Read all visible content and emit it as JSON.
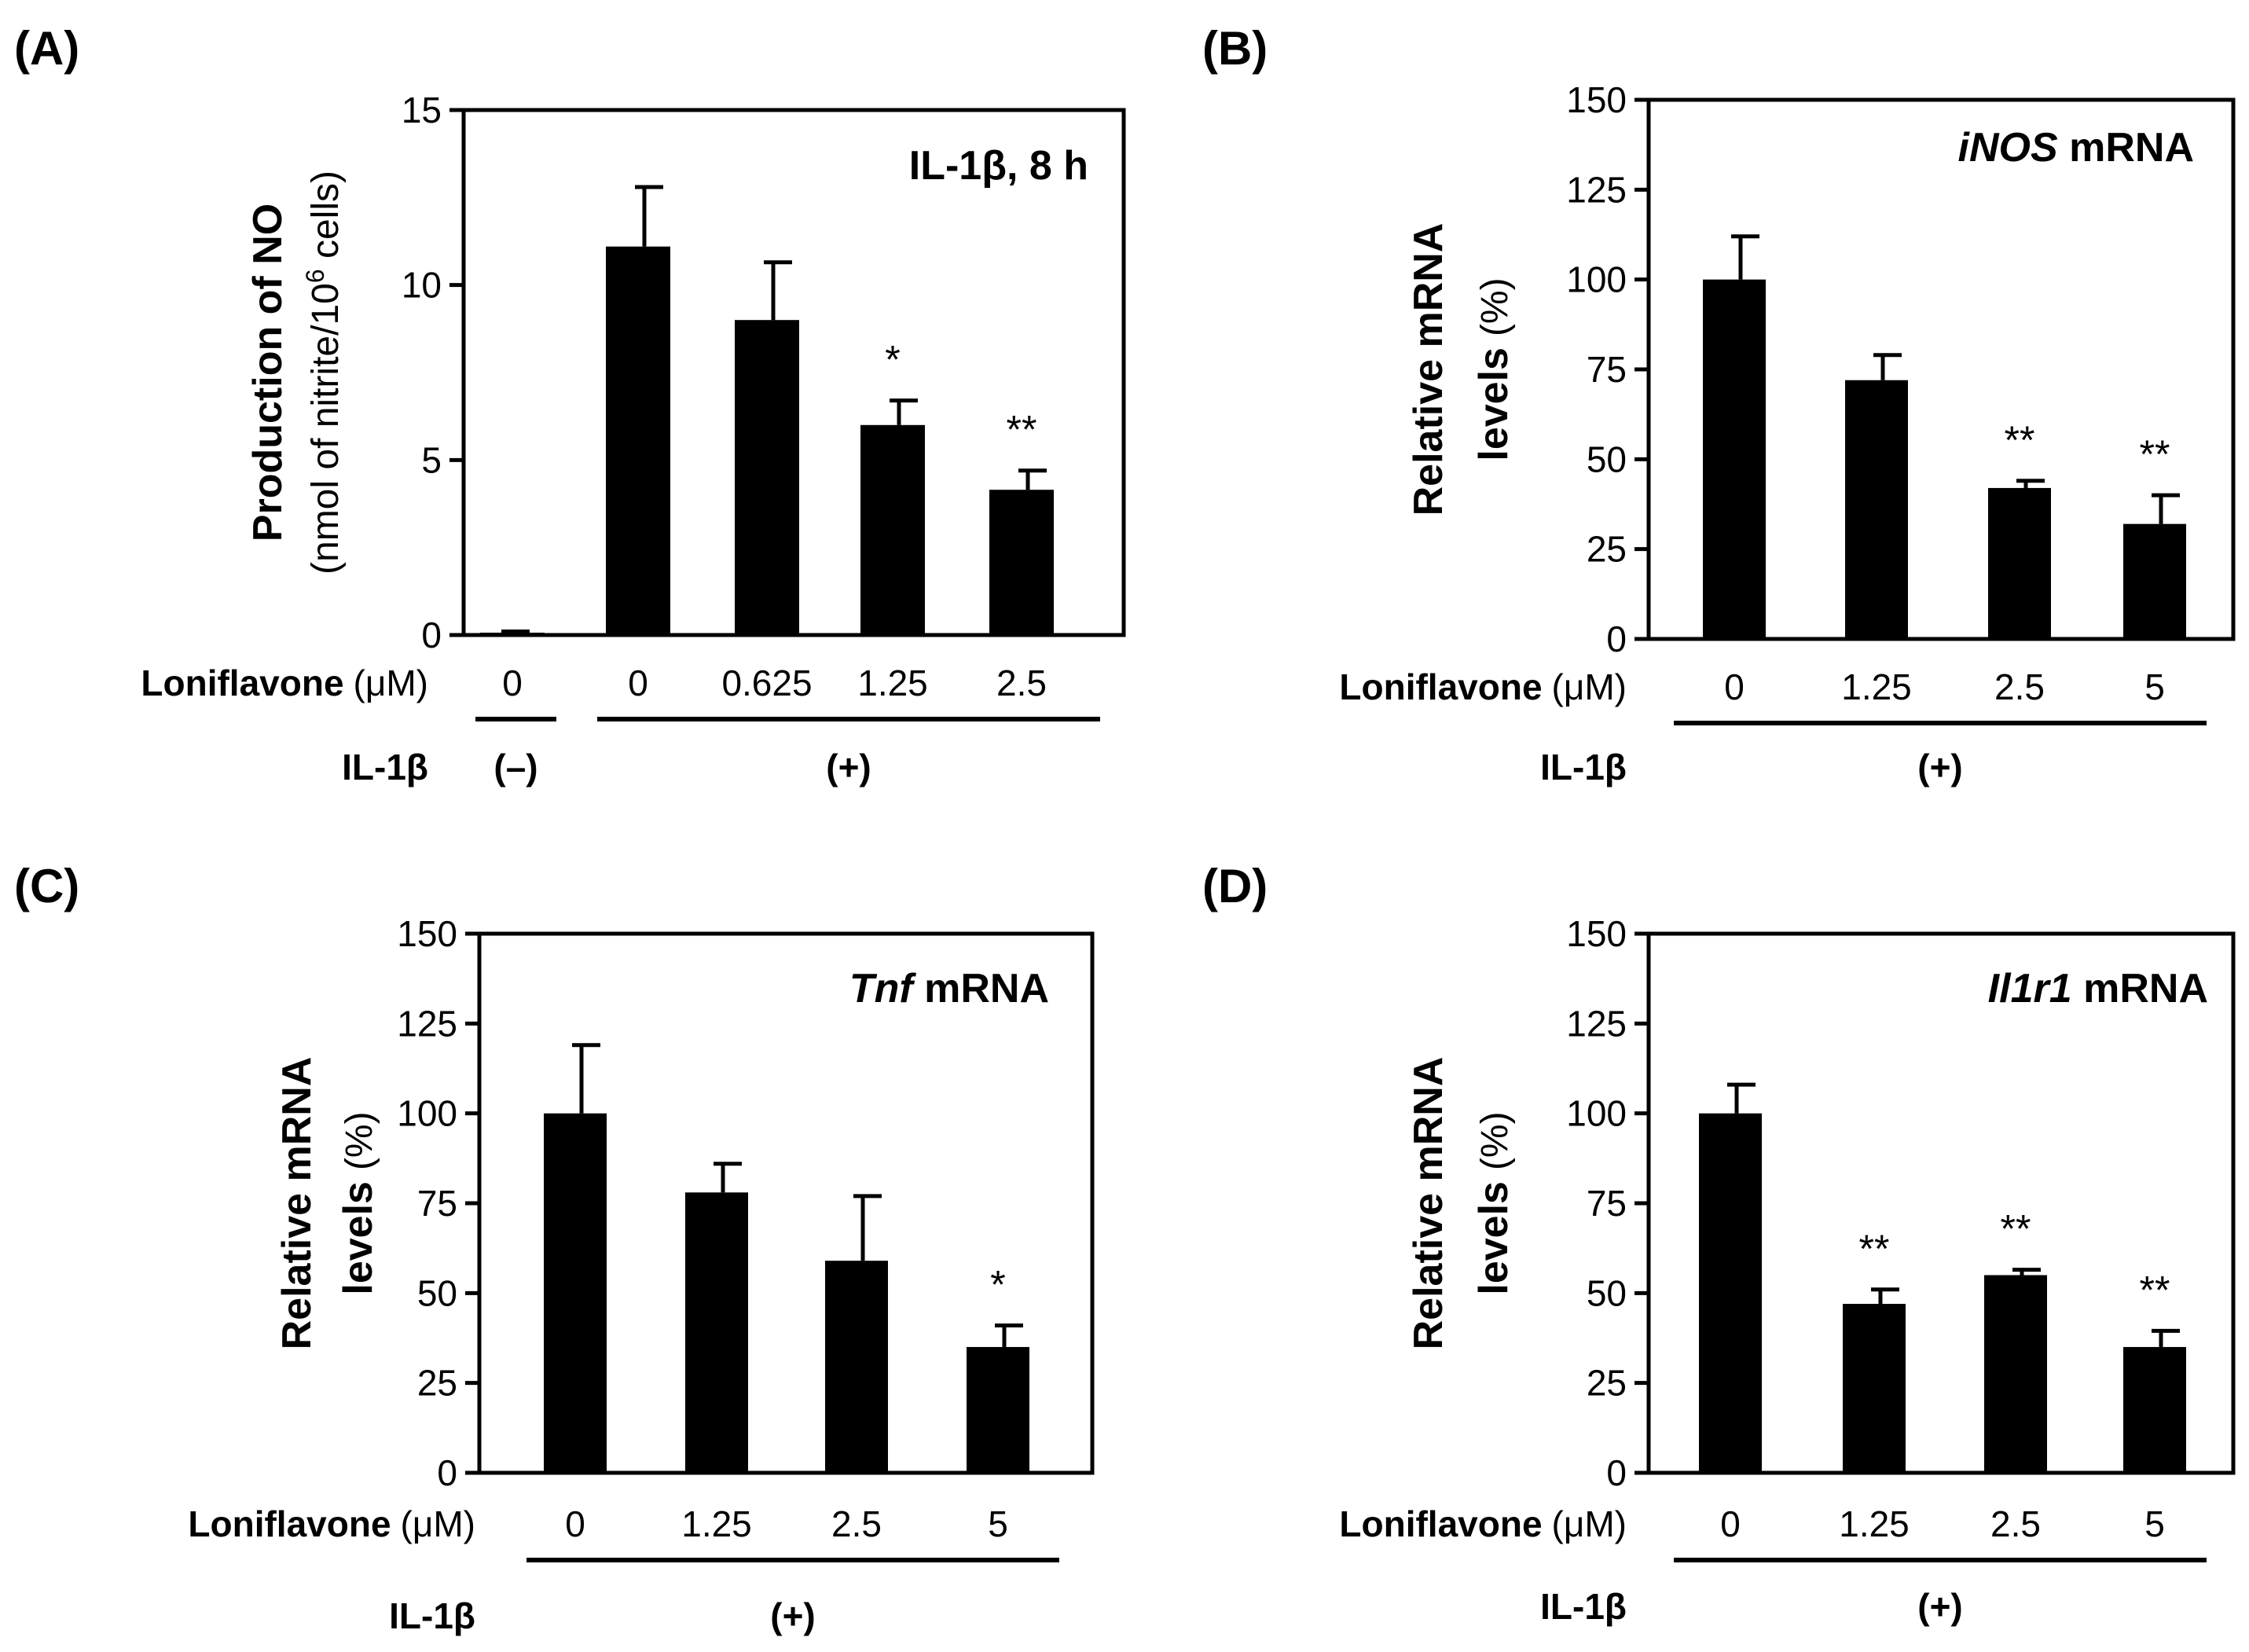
{
  "colors": {
    "bar": "#000000",
    "background": "#ffffff",
    "text": "#000000"
  },
  "chart_data": [
    {
      "panel": "(A)",
      "type": "bar",
      "annotation": "IL-1β, 8 h",
      "ylabel_main": "Production of NO",
      "ylabel_sub_prefix": "(nmol of nitrite/10",
      "ylabel_sub_sup": "6",
      "ylabel_sub_suffix": " cells)",
      "ylim": [
        0,
        15
      ],
      "yticks": [
        0,
        5,
        10,
        15
      ],
      "xrow_label_bold": "Loniflavone",
      "xrow_label_unit": "(μM)",
      "categories": [
        "0",
        "0",
        "0.625",
        "1.25",
        "2.5"
      ],
      "values": [
        0.05,
        11.1,
        9.0,
        6.0,
        4.15
      ],
      "errors": [
        0.05,
        1.7,
        1.65,
        0.7,
        0.55
      ],
      "significance": [
        "",
        "",
        "",
        "*",
        "**"
      ],
      "group_label": "IL-1β",
      "groups": [
        {
          "label": "(–)",
          "start": 0,
          "end": 0
        },
        {
          "label": "(+)",
          "start": 1,
          "end": 4
        }
      ]
    },
    {
      "panel": "(B)",
      "type": "bar",
      "annotation_italic": "iNOS",
      "annotation_rest": " mRNA",
      "ylabel_line1": "Relative mRNA",
      "ylabel_line2_bold": "levels",
      "ylabel_line2_unit": "(%)",
      "ylim": [
        0,
        150
      ],
      "yticks": [
        0,
        25,
        50,
        75,
        100,
        125,
        150
      ],
      "xrow_label_bold": "Loniflavone",
      "xrow_label_unit": "(μM)",
      "categories": [
        "0",
        "1.25",
        "2.5",
        "5"
      ],
      "values": [
        100,
        72,
        42,
        32
      ],
      "errors": [
        12,
        7,
        2,
        8
      ],
      "significance": [
        "",
        "",
        "**",
        "**"
      ],
      "group_label": "IL-1β",
      "groups": [
        {
          "label": "(+)",
          "start": 0,
          "end": 3
        }
      ]
    },
    {
      "panel": "(C)",
      "type": "bar",
      "annotation_italic": "Tnf",
      "annotation_rest": " mRNA",
      "ylabel_line1": "Relative mRNA",
      "ylabel_line2_bold": "levels",
      "ylabel_line2_unit": "(%)",
      "ylim": [
        0,
        150
      ],
      "yticks": [
        0,
        25,
        50,
        75,
        100,
        125,
        150
      ],
      "xrow_label_bold": "Loniflavone",
      "xrow_label_unit": "(μM)",
      "categories": [
        "0",
        "1.25",
        "2.5",
        "5"
      ],
      "values": [
        100,
        78,
        59,
        35
      ],
      "errors": [
        19,
        8,
        18,
        6
      ],
      "significance": [
        "",
        "",
        "",
        "*"
      ],
      "group_label": "IL-1β",
      "groups": [
        {
          "label": "(+)",
          "start": 0,
          "end": 3
        }
      ]
    },
    {
      "panel": "(D)",
      "type": "bar",
      "annotation_italic": "Il1r1",
      "annotation_rest": " mRNA",
      "ylabel_line1": "Relative mRNA",
      "ylabel_line2_bold": "levels",
      "ylabel_line2_unit": "(%)",
      "ylim": [
        0,
        150
      ],
      "yticks": [
        0,
        25,
        50,
        75,
        100,
        125,
        150
      ],
      "xrow_label_bold": "Loniflavone",
      "xrow_label_unit": "(μM)",
      "categories": [
        "0",
        "1.25",
        "2.5",
        "5"
      ],
      "values": [
        100,
        47,
        55,
        35
      ],
      "errors": [
        8,
        4,
        1.5,
        4.5
      ],
      "significance": [
        "",
        "**",
        "**",
        "**"
      ],
      "group_label": "IL-1β",
      "groups": [
        {
          "label": "(+)",
          "start": 0,
          "end": 3
        }
      ]
    }
  ]
}
